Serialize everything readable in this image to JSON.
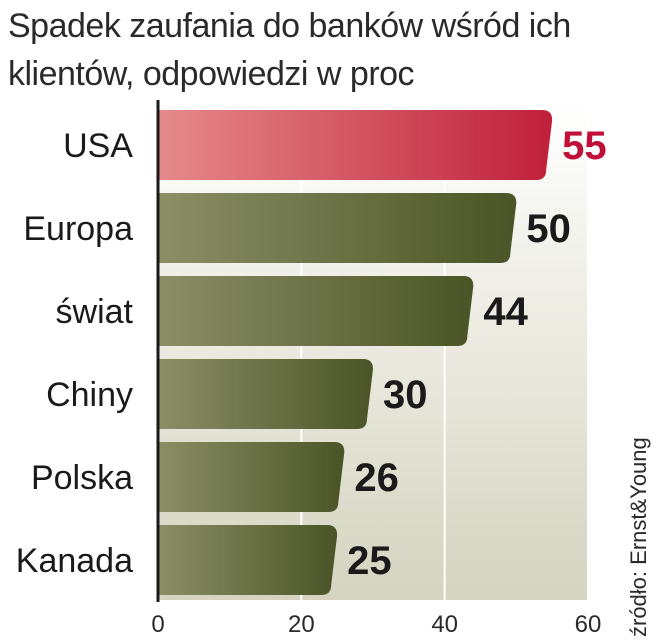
{
  "title": "Spadek zaufania do banków wśród ich klientów, odpowiedzi w proc",
  "source": "źródło: Ernst&Young",
  "colors": {
    "highlight_dark": "#c0203a",
    "highlight_light": "#e58a8a",
    "bar_dark": "#4a5426",
    "bar_light": "#8b8f66",
    "highlight_label": "#c0103a",
    "label": "#1a1a1a",
    "background_panel": "#dcdccb"
  },
  "chart_data": {
    "type": "bar",
    "orientation": "horizontal",
    "categories": [
      "USA",
      "Europa",
      "świat",
      "Chiny",
      "Polska",
      "Kanada"
    ],
    "values": [
      55,
      50,
      44,
      30,
      26,
      25
    ],
    "value_labels": [
      "55",
      "50",
      "44",
      "30",
      "26",
      "25"
    ],
    "highlight": "USA",
    "xlim": [
      0,
      60
    ],
    "xticks": [
      "0",
      "20",
      "40",
      "60"
    ],
    "grid": true
  }
}
